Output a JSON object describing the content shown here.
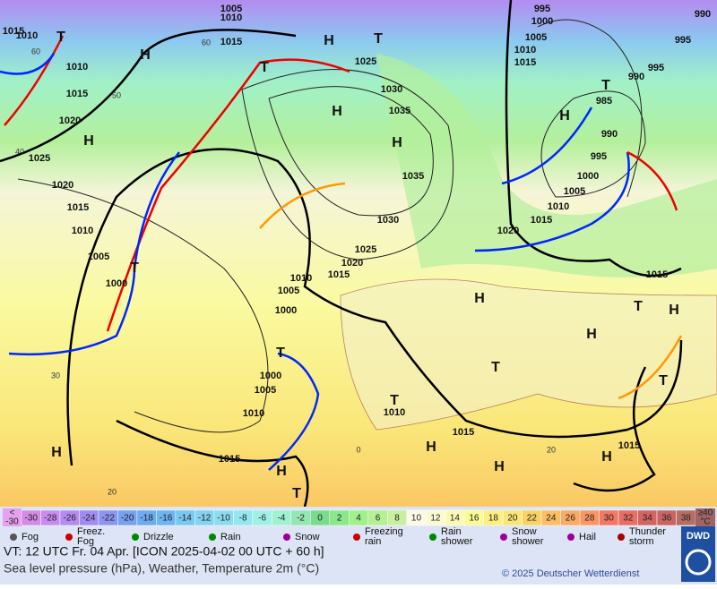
{
  "map": {
    "pressure_labels": [
      "1005",
      "1010",
      "1015",
      "1010",
      "1015",
      "1010",
      "1015",
      "1020",
      "1025",
      "1020",
      "1015",
      "1010",
      "1005",
      "1000",
      "1025",
      "1030",
      "1035",
      "1035",
      "1030",
      "1025",
      "1020",
      "1015",
      "1010",
      "1005",
      "1000",
      "1000",
      "1005",
      "1010",
      "1015",
      "1010",
      "1015",
      "1015",
      "1015",
      "995",
      "1000",
      "1005",
      "1010",
      "1015",
      "990",
      "995",
      "995",
      "990",
      "985",
      "990",
      "995",
      "1000",
      "1005",
      "1010",
      "1015",
      "1020"
    ],
    "temperature_labels": [
      "60",
      "60",
      "50",
      "40",
      "30",
      "20",
      "20",
      "0"
    ],
    "centers": [
      "H",
      "H",
      "H",
      "H",
      "H",
      "T",
      "T",
      "T",
      "T",
      "T",
      "T",
      "T",
      "T",
      "T",
      "T",
      "H",
      "H",
      "H",
      "H",
      "H",
      "H",
      "H",
      "H",
      "H",
      "T"
    ]
  },
  "color_scale": {
    "cells": [
      {
        "label": "-30",
        "color": "#d28ce6"
      },
      {
        "label": "-28",
        "color": "#c88cf0"
      },
      {
        "label": "-26",
        "color": "#b48cf0"
      },
      {
        "label": "-24",
        "color": "#a08cf0"
      },
      {
        "label": "-22",
        "color": "#8c96f0"
      },
      {
        "label": "-20",
        "color": "#78a0f0"
      },
      {
        "label": "-18",
        "color": "#6eaaf0"
      },
      {
        "label": "-16",
        "color": "#6eb4f0"
      },
      {
        "label": "-14",
        "color": "#78c8f0"
      },
      {
        "label": "-12",
        "color": "#82d2f0"
      },
      {
        "label": "-10",
        "color": "#8cdcf0"
      },
      {
        "label": "-8",
        "color": "#96e6f0"
      },
      {
        "label": "-6",
        "color": "#a0f0e6"
      },
      {
        "label": "-4",
        "color": "#a0f0d2"
      },
      {
        "label": "-2",
        "color": "#96e6b4"
      },
      {
        "label": "0",
        "color": "#78dc8c"
      },
      {
        "label": "2",
        "color": "#8ce68c"
      },
      {
        "label": "4",
        "color": "#a0f08c"
      },
      {
        "label": "6",
        "color": "#b4f096"
      },
      {
        "label": "8",
        "color": "#c8f0a0"
      },
      {
        "label": "10",
        "color": "#fafae6"
      },
      {
        "label": "12",
        "color": "#fafad2"
      },
      {
        "label": "14",
        "color": "#fafab4"
      },
      {
        "label": "16",
        "color": "#fafa96"
      },
      {
        "label": "18",
        "color": "#faf082"
      },
      {
        "label": "20",
        "color": "#fae678"
      },
      {
        "label": "22",
        "color": "#fad264"
      },
      {
        "label": "24",
        "color": "#fabe64"
      },
      {
        "label": "26",
        "color": "#faaa64"
      },
      {
        "label": "28",
        "color": "#fa9664"
      },
      {
        "label": "30",
        "color": "#f07864"
      },
      {
        "label": "32",
        "color": "#e66e64"
      },
      {
        "label": "34",
        "color": "#d26464"
      },
      {
        "label": "36",
        "color": "#c86464"
      },
      {
        "label": "38",
        "color": "#b46e64"
      }
    ],
    "low_end": {
      "lines": [
        "<",
        "-30"
      ],
      "color": "#e6a0f0"
    },
    "high_end": {
      "lines": [
        "≥40",
        "°C"
      ],
      "color": "#a06464"
    }
  },
  "legend": [
    "Fog",
    "Freez.\nFog",
    "Drizzle",
    "Rain",
    "Snow",
    "Freezing\nrain",
    "Rain\nshower",
    "Snow\nshower",
    "Hail",
    "Thunder\nstorm"
  ],
  "footer": {
    "valid_time": "VT: 12 UTC Fr.  04 Apr. [ICON 2025-04-02  00 UTC + 60 h]",
    "subtitle": "Sea level pressure (hPa), Weather, Temperature 2m (°C)",
    "copyright": "© 2025 Deutscher Wetterdienst",
    "logo": "DWD"
  }
}
